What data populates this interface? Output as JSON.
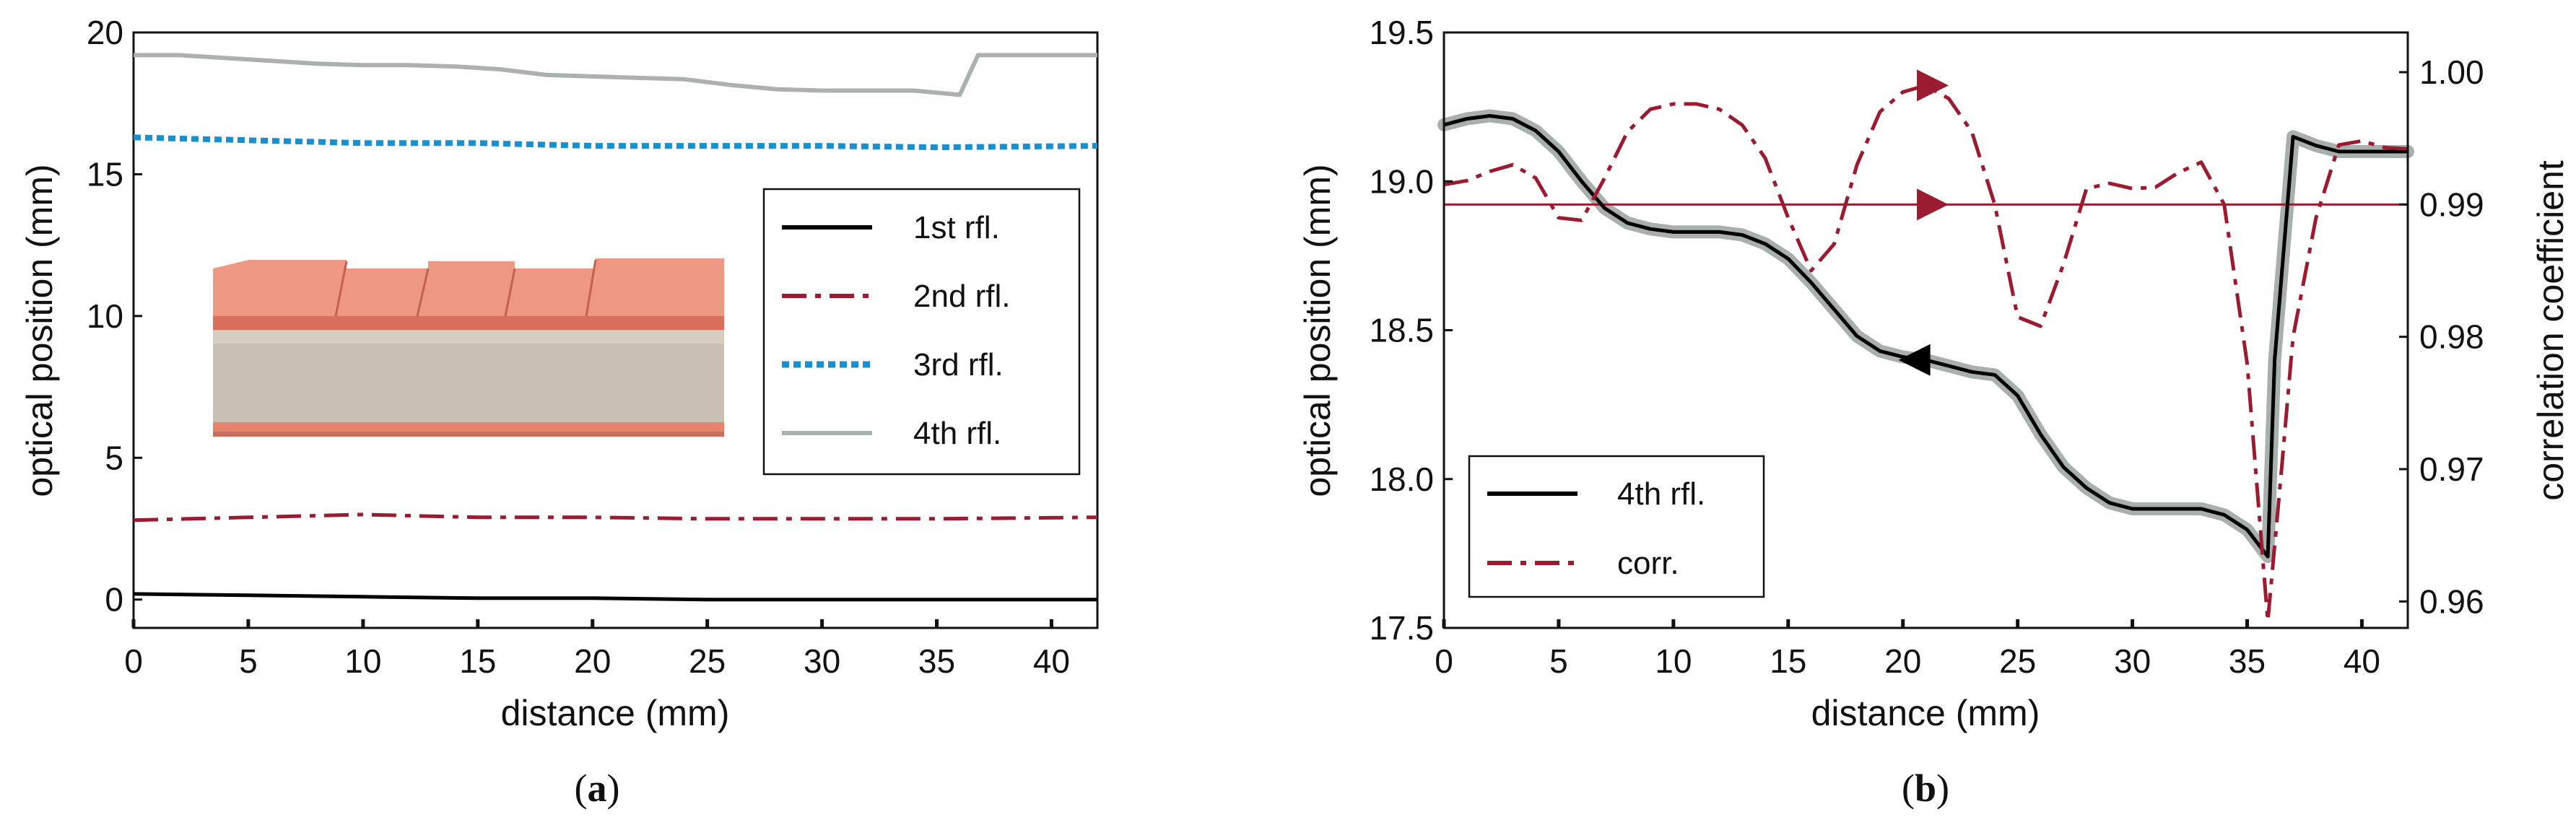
{
  "chart_data": [
    {
      "panel": "a",
      "type": "line",
      "caption_letter": "a",
      "title": "",
      "xlabel": "distance (mm)",
      "ylabel": "optical position (mm)",
      "xlim": [
        0,
        42
      ],
      "ylim": [
        -1,
        20
      ],
      "xticks": [
        0,
        5,
        10,
        15,
        20,
        25,
        30,
        35,
        40
      ],
      "yticks": [
        0,
        5,
        10,
        15,
        20
      ],
      "grid": false,
      "legend_position": "center-right",
      "inset_image": "photo of layered sample: salmon-colored top layer with grooves, grey porous core, salmon bottom layer",
      "series": [
        {
          "name": "1st rfl.",
          "color": "#000000",
          "style": "solid",
          "x": [
            0,
            5,
            10,
            15,
            20,
            25,
            30,
            35,
            42
          ],
          "y": [
            0.2,
            0.15,
            0.1,
            0.05,
            0.05,
            0.0,
            0.0,
            0.0,
            0.0
          ]
        },
        {
          "name": "2nd rfl.",
          "color": "#9b1c31",
          "style": "dashdot",
          "x": [
            0,
            5,
            10,
            15,
            20,
            25,
            30,
            35,
            42
          ],
          "y": [
            2.8,
            2.9,
            3.0,
            2.9,
            2.9,
            2.85,
            2.85,
            2.85,
            2.9
          ]
        },
        {
          "name": "3rd rfl.",
          "color": "#1a8fd0",
          "style": "dotted",
          "x": [
            0,
            5,
            10,
            15,
            20,
            25,
            30,
            35,
            42
          ],
          "y": [
            16.3,
            16.2,
            16.1,
            16.1,
            16.0,
            16.0,
            16.0,
            15.95,
            16.0
          ]
        },
        {
          "name": "4th rfl.",
          "color": "#aab2ae",
          "style": "solid",
          "x": [
            0,
            2,
            4,
            6,
            8,
            10,
            12,
            14,
            16,
            18,
            20,
            22,
            24,
            26,
            28,
            30,
            32,
            34,
            36,
            36.8,
            38,
            40,
            42
          ],
          "y": [
            19.2,
            19.2,
            19.1,
            19.0,
            18.9,
            18.85,
            18.85,
            18.8,
            18.7,
            18.5,
            18.45,
            18.4,
            18.35,
            18.15,
            18.0,
            17.95,
            17.95,
            17.95,
            17.8,
            19.2,
            19.2,
            19.2,
            19.2
          ]
        }
      ]
    },
    {
      "panel": "b",
      "type": "line",
      "caption_letter": "b",
      "title": "",
      "xlabel": "distance (mm)",
      "ylabel": "optical position (mm)",
      "y2label": "correlation coefficient",
      "xlim": [
        0,
        42
      ],
      "ylim": [
        17.5,
        19.5
      ],
      "y2lim": [
        0.958,
        1.003
      ],
      "xticks": [
        0,
        5,
        10,
        15,
        20,
        25,
        30,
        35,
        40
      ],
      "yticks": [
        "17.5",
        "18.0",
        "18.5",
        "19.0",
        "19.5"
      ],
      "y2ticks": [
        "0.96",
        "0.97",
        "0.98",
        "0.99",
        "1.00"
      ],
      "grid": false,
      "legend_position": "lower-left",
      "threshold": {
        "value": 0.99,
        "axis": "right",
        "color": "#9b1c31"
      },
      "series": [
        {
          "name": "4th rfl.",
          "axis": "left",
          "color": "#000000",
          "style": "solid",
          "band_color": "#a7b0ad",
          "x": [
            0,
            1,
            2,
            3,
            4,
            5,
            6,
            7,
            8,
            9,
            10,
            11,
            12,
            13,
            14,
            15,
            16,
            17,
            18,
            19,
            20,
            21,
            22,
            23,
            24,
            25,
            26,
            27,
            28,
            29,
            30,
            31,
            32,
            33,
            34,
            35,
            35.9,
            36.2,
            37,
            38,
            39,
            40,
            41,
            42
          ],
          "y": [
            19.19,
            19.21,
            19.22,
            19.21,
            19.17,
            19.1,
            19.0,
            18.91,
            18.86,
            18.84,
            18.83,
            18.83,
            18.83,
            18.82,
            18.79,
            18.74,
            18.66,
            18.57,
            18.48,
            18.43,
            18.41,
            18.4,
            18.38,
            18.36,
            18.35,
            18.28,
            18.15,
            18.04,
            17.97,
            17.92,
            17.9,
            17.9,
            17.9,
            17.9,
            17.88,
            17.83,
            17.74,
            18.4,
            19.15,
            19.12,
            19.1,
            19.1,
            19.1,
            19.1
          ]
        },
        {
          "name": "corr.",
          "axis": "right",
          "color": "#9b1c31",
          "style": "dashdot",
          "x": [
            0,
            1,
            2,
            3,
            4,
            5,
            6,
            7,
            8,
            9,
            10,
            11,
            12,
            13,
            14,
            15,
            16,
            17,
            18,
            19,
            20,
            21,
            22,
            23,
            24,
            25,
            26,
            27,
            28,
            29,
            30,
            31,
            32,
            33,
            34,
            35,
            35.9,
            36.5,
            37,
            38,
            39,
            40,
            41,
            42
          ],
          "y": [
            0.9915,
            0.9918,
            0.9925,
            0.993,
            0.992,
            0.989,
            0.9888,
            0.992,
            0.9955,
            0.9972,
            0.9976,
            0.9976,
            0.9972,
            0.996,
            0.9935,
            0.989,
            0.985,
            0.987,
            0.993,
            0.997,
            0.9985,
            0.999,
            0.998,
            0.9955,
            0.99,
            0.9815,
            0.9808,
            0.9855,
            0.9912,
            0.9916,
            0.9912,
            0.9913,
            0.9924,
            0.9932,
            0.99,
            0.978,
            0.9585,
            0.97,
            0.98,
            0.989,
            0.9945,
            0.9948,
            0.9943,
            0.9942
          ]
        }
      ],
      "annotations": [
        {
          "shape": "arrowhead-right",
          "color": "#9b1c31",
          "x": 21.3,
          "y": 0.999,
          "axis": "right"
        },
        {
          "shape": "arrowhead-right",
          "color": "#9b1c31",
          "x": 21.3,
          "y": 0.99,
          "axis": "right"
        },
        {
          "shape": "arrowhead-left",
          "color": "#000000",
          "x": 20.5,
          "y": 18.4,
          "axis": "left"
        }
      ]
    }
  ]
}
